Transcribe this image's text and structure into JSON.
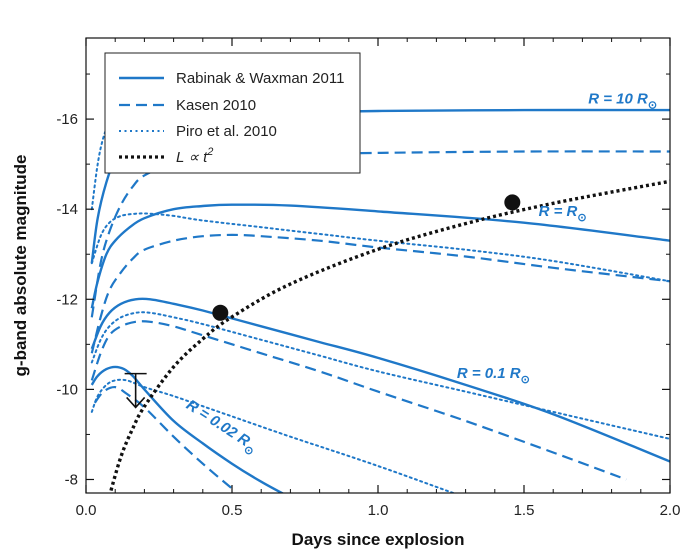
{
  "chart_data": {
    "type": "line",
    "xlabel": "Days since explosion",
    "ylabel": "g-band absolute magnitude",
    "xlim": [
      0.0,
      2.0
    ],
    "ylim": [
      -7.7,
      -17.8
    ],
    "y_inverted": true,
    "x_ticks": [
      "0.0",
      "0.5",
      "1.0",
      "1.5",
      "2.0"
    ],
    "y_ticks": [
      "-16",
      "-14",
      "-12",
      "-10",
      "-8"
    ],
    "x_tick_values": [
      0.0,
      0.5,
      1.0,
      1.5,
      2.0
    ],
    "y_tick_values": [
      -16,
      -14,
      -12,
      -10,
      -8
    ],
    "grid": false,
    "legend_position": "top-left",
    "legend": [
      {
        "label": "Rabinak & Waxman 2011",
        "style": "solid"
      },
      {
        "label": "Kasen 2010",
        "style": "dashed"
      },
      {
        "label": "Piro et al. 2010",
        "style": "dotted"
      },
      {
        "label": "L ∝ t",
        "superscript": "2",
        "style": "dotted-black"
      }
    ],
    "colors": {
      "models": "#1f78c8",
      "power_law": "#111111"
    },
    "annotations": [
      {
        "prefix": "R = ",
        "value": "10",
        "suffix": " R",
        "sub": "⊙",
        "x": 1.72,
        "y": -16.35
      },
      {
        "prefix": "R = R",
        "value": "",
        "suffix": "",
        "sub": "⊙",
        "x": 1.55,
        "y": -13.85
      },
      {
        "prefix": "R = ",
        "value": "0.1",
        "suffix": " R",
        "sub": "⊙",
        "x": 1.27,
        "y": -10.25
      },
      {
        "prefix": "R = ",
        "value": "0.02",
        "suffix": " R",
        "sub": "⊙",
        "x": 0.34,
        "y": -9.6,
        "rotate": 33
      }
    ],
    "series": [
      {
        "model": "Rabinak & Waxman 2011",
        "radius": "10",
        "style": "solid",
        "x": [
          0.02,
          0.04,
          0.07,
          0.1,
          0.15,
          0.2,
          0.3,
          0.5,
          0.7,
          1.0,
          1.5,
          2.0
        ],
        "y": [
          -12.8,
          -13.8,
          -14.6,
          -15.1,
          -15.5,
          -15.75,
          -15.95,
          -16.1,
          -16.15,
          -16.18,
          -16.2,
          -16.2
        ]
      },
      {
        "model": "Rabinak & Waxman 2011",
        "radius": "1",
        "style": "solid",
        "x": [
          0.02,
          0.04,
          0.07,
          0.1,
          0.15,
          0.2,
          0.3,
          0.4,
          0.5,
          0.7,
          1.0,
          1.5,
          2.0
        ],
        "y": [
          -11.8,
          -12.4,
          -13.0,
          -13.3,
          -13.6,
          -13.8,
          -14.0,
          -14.07,
          -14.1,
          -14.08,
          -13.95,
          -13.7,
          -13.3
        ]
      },
      {
        "model": "Rabinak & Waxman 2011",
        "radius": "0.1",
        "style": "solid",
        "x": [
          0.02,
          0.05,
          0.08,
          0.12,
          0.17,
          0.22,
          0.3,
          0.4,
          0.6,
          0.8,
          1.0,
          1.3,
          1.6,
          2.0
        ],
        "y": [
          -10.9,
          -11.4,
          -11.7,
          -11.9,
          -12.0,
          -12.0,
          -11.9,
          -11.75,
          -11.4,
          -11.05,
          -10.7,
          -10.1,
          -9.45,
          -8.4
        ]
      },
      {
        "model": "Rabinak & Waxman 2011",
        "radius": "0.02",
        "style": "solid",
        "x": [
          0.02,
          0.04,
          0.07,
          0.1,
          0.13,
          0.16,
          0.2,
          0.3,
          0.4,
          0.5,
          0.6,
          0.7
        ],
        "y": [
          -10.1,
          -10.3,
          -10.45,
          -10.5,
          -10.45,
          -10.3,
          -10.0,
          -9.3,
          -8.8,
          -8.35,
          -7.95,
          -7.6
        ]
      },
      {
        "model": "Kasen 2010",
        "radius": "10",
        "style": "dashed",
        "x": [
          0.02,
          0.05,
          0.08,
          0.12,
          0.16,
          0.2,
          0.3,
          0.45,
          0.6,
          0.8,
          1.0,
          1.5,
          2.0
        ],
        "y": [
          -11.6,
          -12.8,
          -13.5,
          -14.1,
          -14.5,
          -14.75,
          -15.0,
          -15.15,
          -15.2,
          -15.22,
          -15.25,
          -15.28,
          -15.28
        ]
      },
      {
        "model": "Kasen 2010",
        "radius": "1",
        "style": "dashed",
        "x": [
          0.02,
          0.05,
          0.08,
          0.12,
          0.16,
          0.2,
          0.3,
          0.4,
          0.5,
          0.6,
          0.8,
          1.0,
          1.3,
          1.6,
          2.0
        ],
        "y": [
          -10.8,
          -11.6,
          -12.2,
          -12.6,
          -12.9,
          -13.1,
          -13.3,
          -13.4,
          -13.43,
          -13.4,
          -13.3,
          -13.15,
          -12.95,
          -12.7,
          -12.4
        ]
      },
      {
        "model": "Kasen 2010",
        "radius": "0.1",
        "style": "dashed",
        "x": [
          0.02,
          0.05,
          0.08,
          0.12,
          0.17,
          0.22,
          0.3,
          0.4,
          0.6,
          0.8,
          1.0,
          1.3,
          1.6,
          1.85
        ],
        "y": [
          -10.2,
          -10.8,
          -11.2,
          -11.4,
          -11.5,
          -11.5,
          -11.4,
          -11.2,
          -10.8,
          -10.4,
          -9.95,
          -9.3,
          -8.6,
          -8.0
        ]
      },
      {
        "model": "Kasen 2010",
        "radius": "0.02",
        "style": "dashed",
        "x": [
          0.03,
          0.06,
          0.1,
          0.14,
          0.2,
          0.3,
          0.4,
          0.5
        ],
        "y": [
          -9.7,
          -9.95,
          -10.05,
          -9.9,
          -9.6,
          -8.95,
          -8.35,
          -7.8
        ]
      },
      {
        "model": "Piro et al. 2010",
        "radius": "10",
        "style": "dotted",
        "x": [
          0.02,
          0.04,
          0.06,
          0.09,
          0.12,
          0.15,
          0.2
        ],
        "y": [
          -14.0,
          -15.0,
          -15.6,
          -16.1,
          -16.4,
          -16.6,
          -16.8
        ]
      },
      {
        "model": "Piro et al. 2010",
        "radius": "1",
        "style": "dotted",
        "x": [
          0.02,
          0.05,
          0.08,
          0.12,
          0.17,
          0.22,
          0.3,
          0.4,
          0.6,
          0.8,
          1.0,
          1.3,
          1.6,
          2.0
        ],
        "y": [
          -12.8,
          -13.4,
          -13.7,
          -13.85,
          -13.9,
          -13.9,
          -13.85,
          -13.75,
          -13.6,
          -13.45,
          -13.3,
          -13.1,
          -12.85,
          -12.4
        ]
      },
      {
        "model": "Piro et al. 2010",
        "radius": "0.1",
        "style": "dotted",
        "x": [
          0.02,
          0.05,
          0.08,
          0.12,
          0.17,
          0.22,
          0.3,
          0.4,
          0.6,
          0.8,
          1.0,
          1.3,
          1.6,
          2.0
        ],
        "y": [
          -10.6,
          -11.1,
          -11.4,
          -11.6,
          -11.7,
          -11.7,
          -11.6,
          -11.45,
          -11.1,
          -10.75,
          -10.4,
          -9.95,
          -9.5,
          -8.9
        ]
      },
      {
        "model": "Piro et al. 2010",
        "radius": "0.02",
        "style": "dotted",
        "x": [
          0.02,
          0.04,
          0.07,
          0.1,
          0.14,
          0.2,
          0.3,
          0.5,
          0.7,
          1.0,
          1.3,
          1.6,
          1.9
        ],
        "y": [
          -9.5,
          -9.85,
          -10.1,
          -10.2,
          -10.2,
          -10.05,
          -9.85,
          -9.4,
          -8.95,
          -8.3,
          -7.6,
          -6.9,
          -6.2
        ]
      },
      {
        "model": "L ∝ t",
        "radius": "",
        "style": "dotted-black",
        "x": [
          0.08,
          0.12,
          0.16,
          0.2,
          0.3,
          0.4,
          0.5,
          0.7,
          1.0,
          1.3,
          1.6,
          2.0
        ],
        "y": [
          -7.63,
          -8.51,
          -9.13,
          -9.62,
          -10.5,
          -11.12,
          -11.61,
          -12.34,
          -13.11,
          -13.68,
          -14.13,
          -14.62
        ]
      }
    ],
    "points": [
      {
        "x": 0.46,
        "y": -11.7
      },
      {
        "x": 1.46,
        "y": -14.15
      }
    ],
    "upper_limit": {
      "x": 0.17,
      "y": -10.35,
      "y_end": -9.6
    }
  }
}
